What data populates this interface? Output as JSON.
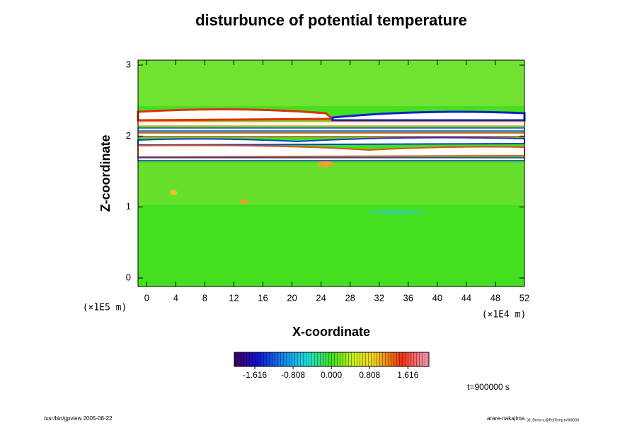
{
  "chart_data": {
    "type": "contour",
    "title": "disturbunce of potential temperature",
    "xlabel": "X-coordinate",
    "ylabel": "Z-coordinate",
    "x_unit": "(×1E4 m)",
    "y_unit": "(×1E5 m)",
    "xlim": [
      -1.2,
      52
    ],
    "xticks": [
      0,
      4,
      8,
      12,
      16,
      20,
      24,
      28,
      32,
      36,
      40,
      44,
      48,
      52
    ],
    "ylim": [
      -0.12,
      3.07
    ],
    "yticks": [
      0,
      1,
      2,
      3
    ],
    "colorbar": {
      "lim": [
        -2.05,
        2.06
      ],
      "ticks": [
        -1.616,
        -0.808,
        {
          "value": 0,
          "label": "0.000"
        },
        0.808,
        1.616
      ]
    },
    "time_label": "t=900000 s",
    "footer_left": "/usr/bin/gpview 2005-08-22",
    "footer_right": "arare-nakajima",
    "footer_right_small": "03_Berry.nc@PotTemp,t=900000"
  }
}
